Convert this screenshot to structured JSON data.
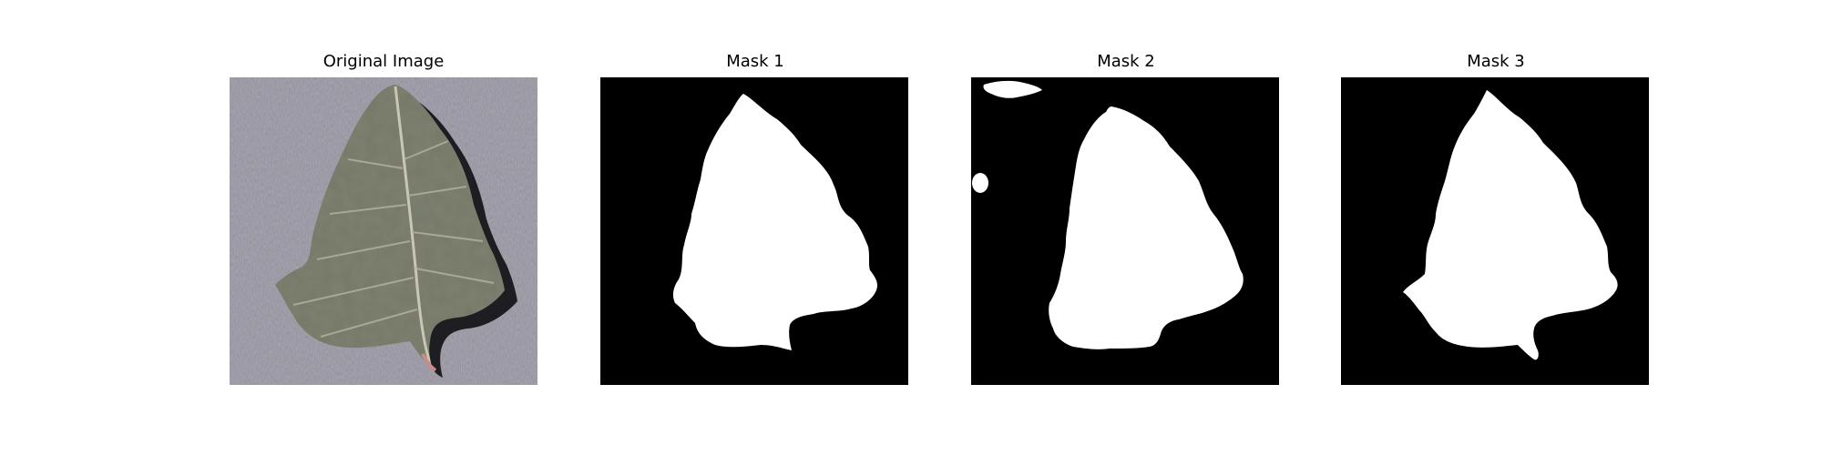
{
  "figure": {
    "panels": [
      {
        "title": "Original Image",
        "kind": "photo",
        "subject": "leaf on gray textured background"
      },
      {
        "title": "Mask 1",
        "kind": "mask"
      },
      {
        "title": "Mask 2",
        "kind": "mask"
      },
      {
        "title": "Mask 3",
        "kind": "mask"
      }
    ],
    "colors": {
      "background": "#ffffff",
      "mask_background": "#000000",
      "mask_foreground": "#ffffff",
      "photo_background": "#8e8c98",
      "leaf": "#7f8070",
      "leaf_shadow": "#1e1e22"
    }
  }
}
